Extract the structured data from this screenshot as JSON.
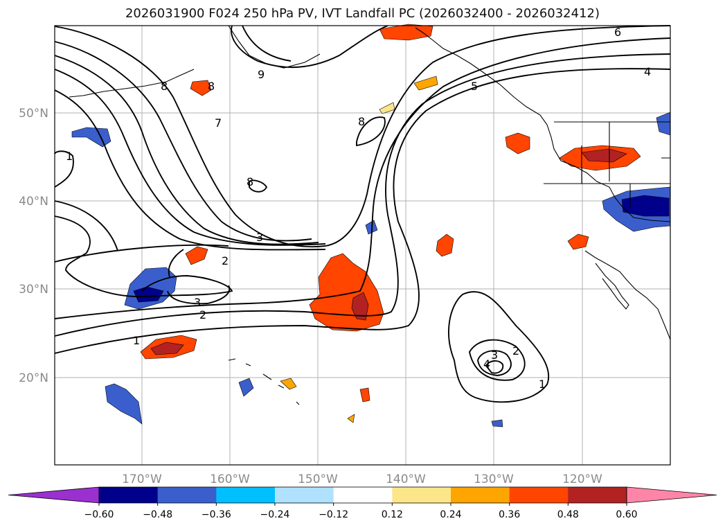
{
  "title": "2026031900 F024 250 hPa PV, IVT Landfall PC (2026032400 - 2026032412)",
  "axes": {
    "lat_labels": [
      "50°N",
      "40°N",
      "30°N",
      "20°N"
    ],
    "lon_labels": [
      "170°W",
      "160°W",
      "150°W",
      "140°W",
      "130°W",
      "120°W"
    ]
  },
  "contour_labels": [
    "6",
    "4",
    "5",
    "9",
    "8",
    "8",
    "8",
    "8",
    "7",
    "1",
    "3",
    "2",
    "3",
    "2",
    "1",
    "3",
    "2",
    "4",
    "1"
  ],
  "colorbar": {
    "ticks": [
      "−0.60",
      "−0.48",
      "−0.36",
      "−0.24",
      "−0.12",
      "0.12",
      "0.24",
      "0.36",
      "0.48",
      "0.60"
    ],
    "colors": [
      "#9b30d0",
      "#00008b",
      "#3a5fcd",
      "#00bfff",
      "#b0e2ff",
      "#ffffff",
      "#fde68a",
      "#ffa500",
      "#ff4500",
      "#b22222",
      "#ff85a8"
    ]
  },
  "colors": {
    "neg_dark": "#00008b",
    "neg_mid": "#3a5fcd",
    "neg_light": "#00bfff",
    "pos_light": "#fde68a",
    "pos_mid": "#ffa500",
    "pos_dark": "#ff4500",
    "pos_max": "#b22222"
  }
}
